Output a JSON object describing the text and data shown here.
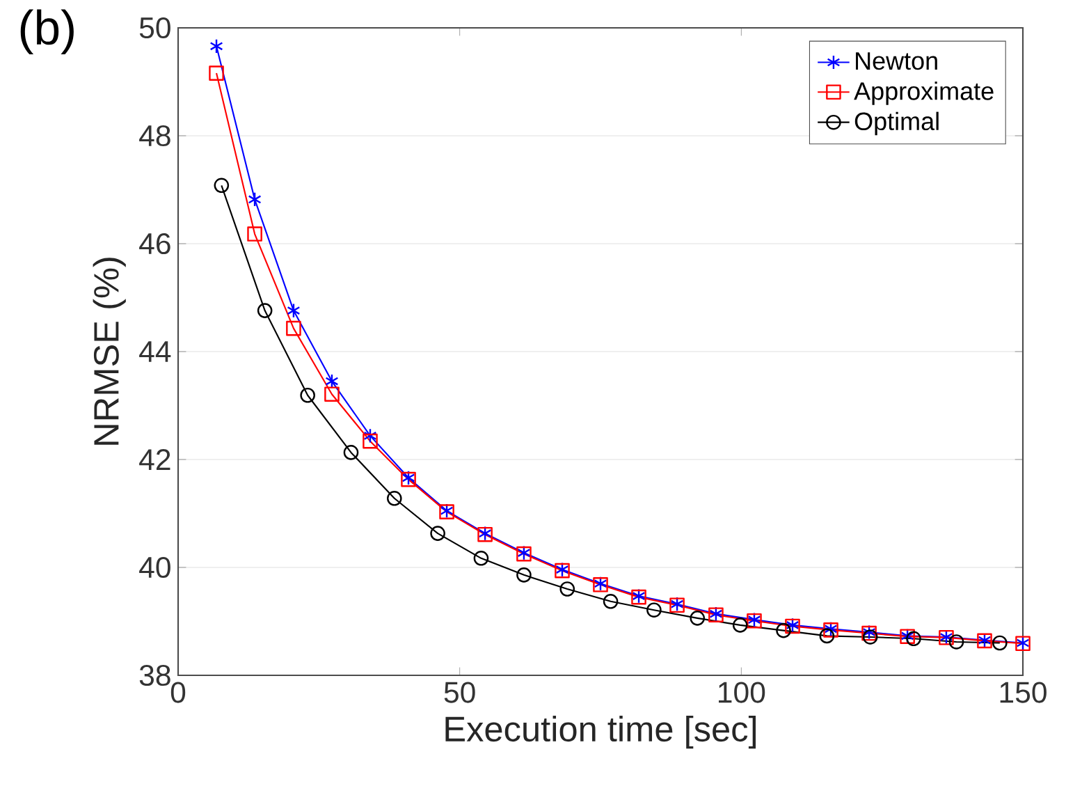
{
  "chart_data": {
    "type": "line",
    "xlabel": "Execution time [sec]",
    "ylabel": "NRMSE (%)",
    "annotations": [
      "(b)"
    ],
    "xlim": [
      0,
      150
    ],
    "ylim": [
      38,
      50
    ],
    "xticks": [
      0,
      50,
      100,
      150
    ],
    "yticks": [
      38,
      40,
      42,
      44,
      46,
      48,
      50
    ],
    "grid": "y",
    "legend": "top right",
    "series": [
      {
        "name": "Newton",
        "color": "#0000ff",
        "marker": "cross",
        "x": [
          6.8,
          13.6,
          20.5,
          27.3,
          34.1,
          40.9,
          47.7,
          54.5,
          61.4,
          68.2,
          75.0,
          81.8,
          88.6,
          95.5,
          102.3,
          109.1,
          115.9,
          122.7,
          129.5,
          136.4,
          143.2,
          150.0
        ],
        "values": [
          49.66,
          46.82,
          44.76,
          43.45,
          42.44,
          41.66,
          41.05,
          40.63,
          40.27,
          39.96,
          39.7,
          39.47,
          39.32,
          39.14,
          39.03,
          38.93,
          38.86,
          38.8,
          38.73,
          38.71,
          38.65,
          38.6
        ]
      },
      {
        "name": "Approximate",
        "color": "#ff0000",
        "marker": "square",
        "x": [
          6.8,
          13.6,
          20.5,
          27.3,
          34.1,
          40.9,
          47.7,
          54.5,
          61.4,
          68.2,
          75.0,
          81.8,
          88.6,
          95.5,
          102.3,
          109.1,
          115.9,
          122.7,
          129.5,
          136.4,
          143.2,
          150.0
        ],
        "values": [
          49.16,
          46.18,
          44.43,
          43.21,
          42.34,
          41.63,
          41.03,
          40.61,
          40.25,
          39.94,
          39.68,
          39.45,
          39.3,
          39.12,
          39.01,
          38.91,
          38.84,
          38.78,
          38.72,
          38.7,
          38.64,
          38.59
        ]
      },
      {
        "name": "Optimal",
        "color": "#000000",
        "marker": "circle",
        "x": [
          7.7,
          15.4,
          23.0,
          30.7,
          38.4,
          46.1,
          53.8,
          61.4,
          69.1,
          76.8,
          84.5,
          92.2,
          99.8,
          107.5,
          115.2,
          122.9,
          130.6,
          138.2,
          145.9
        ],
        "values": [
          47.08,
          44.76,
          43.19,
          42.13,
          41.28,
          40.63,
          40.17,
          39.86,
          39.6,
          39.37,
          39.21,
          39.06,
          38.93,
          38.83,
          38.73,
          38.71,
          38.68,
          38.62,
          38.6
        ]
      }
    ]
  }
}
